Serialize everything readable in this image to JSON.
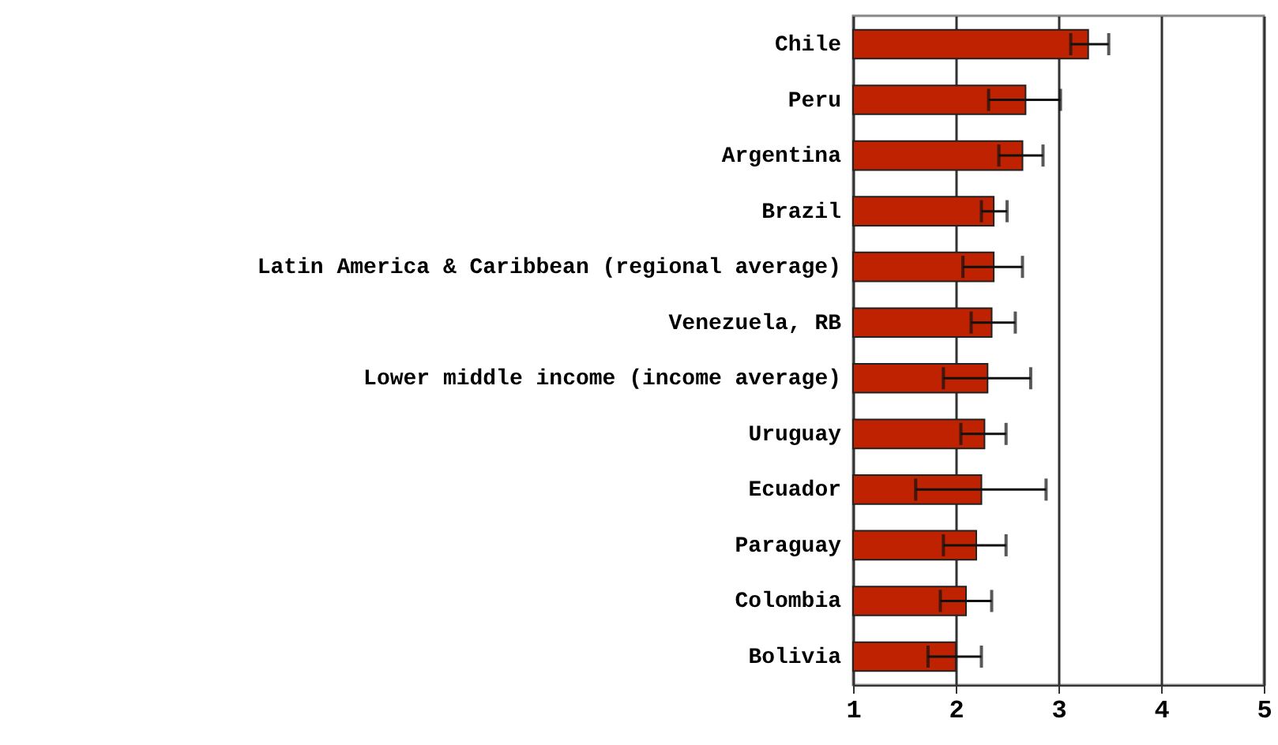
{
  "chart_data": {
    "type": "bar",
    "orientation": "horizontal",
    "categories": [
      "Chile",
      "Peru",
      "Argentina",
      "Brazil",
      "Latin America & Caribbean (regional average)",
      "Venezuela, RB",
      "Lower middle income (income average)",
      "Uruguay",
      "Ecuador",
      "Paraguay",
      "Colombia",
      "Bolivia"
    ],
    "values": [
      3.29,
      2.68,
      2.65,
      2.37,
      2.37,
      2.35,
      2.31,
      2.28,
      2.25,
      2.2,
      2.1,
      2.0
    ],
    "errors": [
      [
        3.12,
        3.49
      ],
      [
        2.32,
        3.02
      ],
      [
        2.42,
        2.85
      ],
      [
        2.25,
        2.5
      ],
      [
        2.07,
        2.65
      ],
      [
        2.15,
        2.58
      ],
      [
        1.88,
        2.73
      ],
      [
        2.05,
        2.49
      ],
      [
        1.61,
        2.88
      ],
      [
        1.88,
        2.49
      ],
      [
        1.85,
        2.35
      ],
      [
        1.73,
        2.25
      ]
    ],
    "color": "#bf2200",
    "xlim": [
      1,
      5
    ],
    "xticks": [
      1,
      2,
      3,
      4,
      5
    ],
    "grid": "x"
  }
}
